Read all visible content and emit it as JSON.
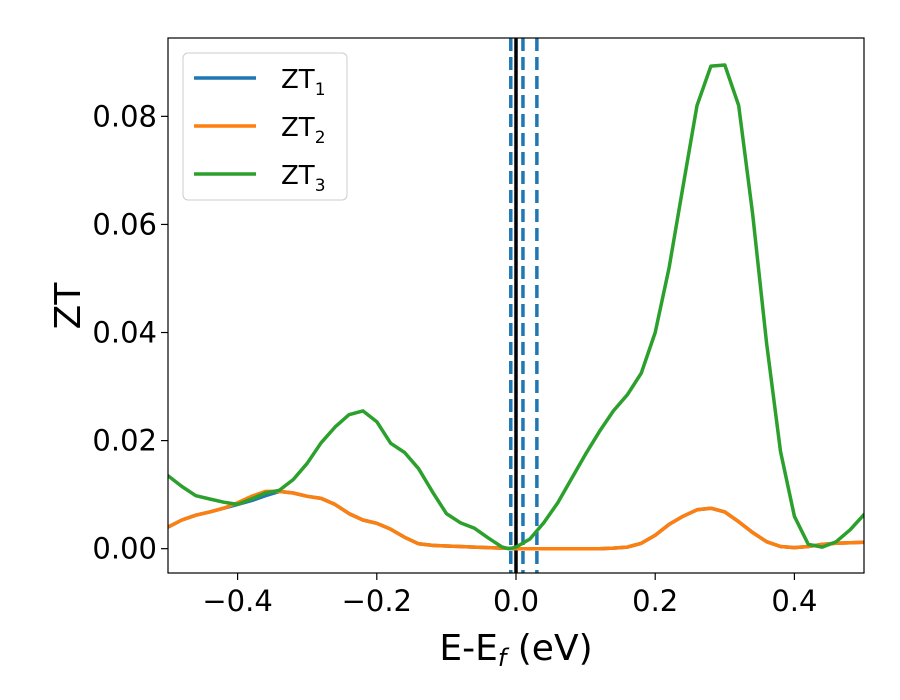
{
  "chart_data": {
    "type": "line",
    "title": "",
    "xlabel": "E-E",
    "xlabel_sub": "f",
    "xlabel_unit": " (eV)",
    "ylabel": "ZT",
    "xlim": [
      -0.5,
      0.5
    ],
    "ylim": [
      -0.0045,
      0.0945
    ],
    "xticks": [
      -0.4,
      -0.2,
      0.0,
      0.2,
      0.4
    ],
    "xtick_labels": [
      "−0.4",
      "−0.2",
      "0.0",
      "0.2",
      "0.4"
    ],
    "yticks": [
      0.0,
      0.02,
      0.04,
      0.06,
      0.08
    ],
    "ytick_labels": [
      "0.00",
      "0.02",
      "0.04",
      "0.06",
      "0.08"
    ],
    "grid": false,
    "legend_position": "top-left",
    "series": [
      {
        "name": "ZT",
        "sub": "1",
        "color": "#1f77b4",
        "x": [
          -0.5,
          -0.48,
          -0.46,
          -0.44,
          -0.42,
          -0.4,
          -0.38,
          -0.36,
          -0.34,
          -0.32,
          -0.3,
          -0.28,
          -0.26,
          -0.24,
          -0.22,
          -0.2,
          -0.18,
          -0.16,
          -0.14,
          -0.12,
          -0.1,
          -0.08,
          -0.06,
          -0.04,
          -0.02,
          0.0,
          0.02,
          0.04,
          0.06,
          0.08,
          0.1,
          0.12,
          0.14,
          0.16,
          0.18,
          0.2,
          0.22,
          0.24,
          0.26,
          0.28,
          0.3,
          0.32,
          0.34,
          0.36,
          0.38,
          0.4,
          0.42,
          0.44,
          0.46,
          0.48,
          0.5
        ],
        "y": [
          0.004,
          0.0053,
          0.0062,
          0.0068,
          0.0075,
          0.0082,
          0.0089,
          0.0098,
          0.0106,
          0.0103,
          0.0097,
          0.0093,
          0.0082,
          0.0065,
          0.0053,
          0.0047,
          0.0036,
          0.0021,
          0.0009,
          0.0006,
          0.0005,
          0.0004,
          0.0003,
          0.0002,
          0.0001,
          0.0,
          0.0,
          0.0,
          0.0,
          0.0,
          0.0,
          0.0,
          0.0001,
          0.0003,
          0.001,
          0.0025,
          0.0045,
          0.006,
          0.0072,
          0.0075,
          0.0068,
          0.005,
          0.003,
          0.0013,
          0.0004,
          0.0002,
          0.0004,
          0.0008,
          0.001,
          0.0011,
          0.0012
        ]
      },
      {
        "name": "ZT",
        "sub": "2",
        "color": "#ff7f0e",
        "x": [
          -0.5,
          -0.48,
          -0.46,
          -0.44,
          -0.42,
          -0.4,
          -0.38,
          -0.36,
          -0.34,
          -0.32,
          -0.3,
          -0.28,
          -0.26,
          -0.24,
          -0.22,
          -0.2,
          -0.18,
          -0.16,
          -0.14,
          -0.12,
          -0.1,
          -0.08,
          -0.06,
          -0.04,
          -0.02,
          0.0,
          0.02,
          0.04,
          0.06,
          0.08,
          0.1,
          0.12,
          0.14,
          0.16,
          0.18,
          0.2,
          0.22,
          0.24,
          0.26,
          0.28,
          0.3,
          0.32,
          0.34,
          0.36,
          0.38,
          0.4,
          0.42,
          0.44,
          0.46,
          0.48,
          0.5
        ],
        "y": [
          0.004,
          0.0053,
          0.0062,
          0.0068,
          0.0075,
          0.0085,
          0.0097,
          0.0106,
          0.0106,
          0.0103,
          0.0097,
          0.0093,
          0.0082,
          0.0065,
          0.0053,
          0.0047,
          0.0036,
          0.0021,
          0.0009,
          0.0006,
          0.0005,
          0.0004,
          0.0003,
          0.0002,
          0.0001,
          0.0,
          0.0,
          0.0,
          0.0,
          0.0,
          0.0,
          0.0,
          0.0001,
          0.0003,
          0.001,
          0.0025,
          0.0045,
          0.006,
          0.0072,
          0.0075,
          0.0068,
          0.005,
          0.003,
          0.0013,
          0.0004,
          0.0002,
          0.0004,
          0.0008,
          0.001,
          0.0011,
          0.0012
        ]
      },
      {
        "name": "ZT",
        "sub": "3",
        "color": "#2ca02c",
        "x": [
          -0.5,
          -0.48,
          -0.46,
          -0.44,
          -0.42,
          -0.4,
          -0.38,
          -0.36,
          -0.34,
          -0.32,
          -0.3,
          -0.28,
          -0.26,
          -0.24,
          -0.22,
          -0.2,
          -0.18,
          -0.16,
          -0.14,
          -0.12,
          -0.1,
          -0.08,
          -0.06,
          -0.04,
          -0.02,
          -0.01,
          0.0,
          0.02,
          0.04,
          0.06,
          0.08,
          0.1,
          0.12,
          0.14,
          0.16,
          0.18,
          0.2,
          0.22,
          0.24,
          0.26,
          0.28,
          0.3,
          0.32,
          0.34,
          0.36,
          0.38,
          0.4,
          0.42,
          0.44,
          0.46,
          0.48,
          0.5
        ],
        "y": [
          0.0135,
          0.0115,
          0.0098,
          0.0092,
          0.0086,
          0.0082,
          0.0092,
          0.0103,
          0.0108,
          0.0128,
          0.0158,
          0.0196,
          0.0225,
          0.0248,
          0.0255,
          0.0235,
          0.0195,
          0.0178,
          0.0148,
          0.0105,
          0.0065,
          0.0048,
          0.0038,
          0.002,
          0.0003,
          0.0,
          0.0003,
          0.0018,
          0.0048,
          0.0085,
          0.013,
          0.0175,
          0.0217,
          0.0255,
          0.0285,
          0.0325,
          0.04,
          0.052,
          0.067,
          0.082,
          0.0893,
          0.0895,
          0.082,
          0.062,
          0.038,
          0.018,
          0.006,
          0.0008,
          0.0003,
          0.0013,
          0.0035,
          0.0063
        ]
      }
    ],
    "vlines": [
      {
        "x": 0.0,
        "color": "#000000",
        "style": "solid"
      },
      {
        "x": -0.0075,
        "color": "#1f77b4",
        "style": "dashed"
      },
      {
        "x": 0.01,
        "color": "#1f77b4",
        "style": "dashed"
      },
      {
        "x": 0.03,
        "color": "#1f77b4",
        "style": "dashed"
      }
    ]
  }
}
